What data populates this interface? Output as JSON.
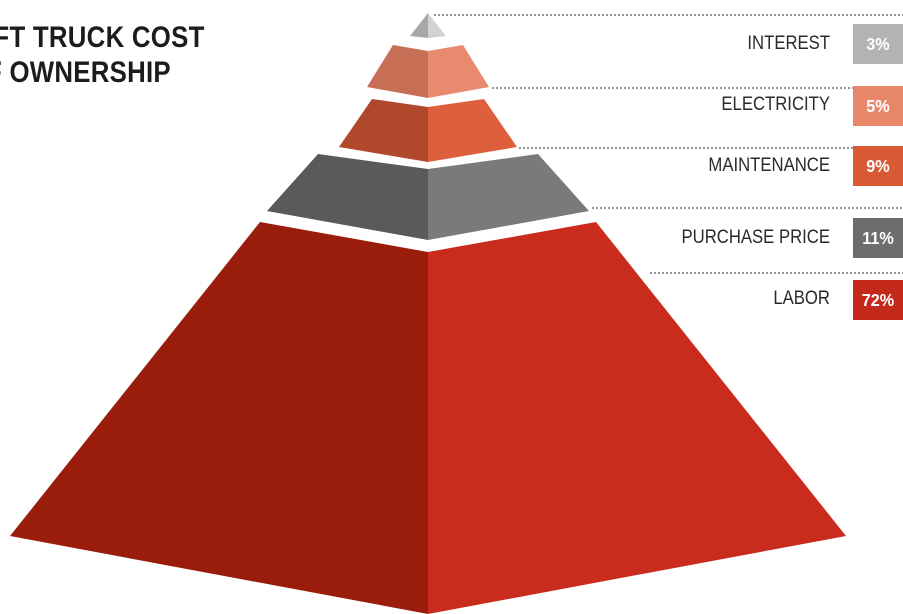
{
  "title": [
    "IFT TRUCK COST",
    "F OWNERSHIP"
  ],
  "chart_data": {
    "type": "pyramid",
    "title": "IFT TRUCK COST F OWNERSHIP",
    "order": "top-to-bottom",
    "categories": [
      "INTEREST",
      "ELECTRICITY",
      "MAINTENANCE",
      "PURCHASE PRICE",
      "LABOR"
    ],
    "values": [
      3,
      5,
      9,
      11,
      72
    ],
    "value_labels": [
      "3%",
      "5%",
      "9%",
      "11%",
      "72%"
    ],
    "unit": "%",
    "colors": {
      "INTEREST": {
        "light": "#d2d2d2",
        "dark": "#a8a8a8",
        "badge": "#b3b3b3"
      },
      "ELECTRICITY": {
        "light": "#e88a6e",
        "dark": "#c66f55",
        "badge": "#e8866a"
      },
      "MAINTENANCE": {
        "light": "#dd5f3c",
        "dark": "#b0482b",
        "badge": "#d85a35"
      },
      "PURCHASE PRICE": {
        "light": "#7a7a7a",
        "dark": "#5a5a5a",
        "badge": "#6d6d6d"
      },
      "LABOR": {
        "light": "#c92c1c",
        "dark": "#9a1c0a",
        "badge": "#c42a1b"
      }
    },
    "legend": "right"
  }
}
